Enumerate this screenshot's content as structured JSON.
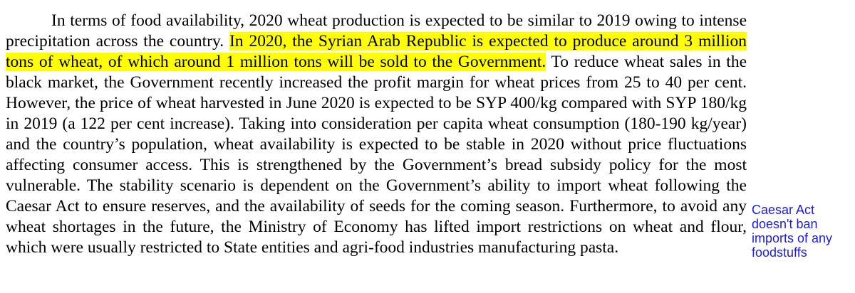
{
  "paragraph": {
    "before_highlight": "In terms of food availability, 2020 wheat production is expected to be similar to 2019 owing to intense precipitation across the country. ",
    "highlight": "In 2020, the Syrian Arab Republic is expected to produce around 3 million tons of wheat, of which around 1 million tons will be sold to the Government.",
    "after_highlight": " To reduce wheat sales in the black market, the Government recently increased the profit margin for wheat prices from 25 to 40 per cent. However, the price of wheat harvested in June 2020 is expected to be SYP 400/kg compared with SYP 180/kg in 2019 (a 122 per cent increase). Taking into consideration per capita wheat consumption (180-190 kg/year) and the country’s population, wheat availability is expected to be stable in 2020 without price fluctuations affecting consumer access. This is strengthened by the Government’s bread subsidy policy for the most vulnerable. The stability scenario is dependent on the Government’s ability to import wheat following the Caesar Act to ensure reserves, and the availability of seeds for the coming season. Furthermore, to avoid any wheat shortages in the future, the Ministry of Economy has lifted import restrictions on wheat and flour, which were usually restricted to State entities and agri-food industries manufacturing pasta."
  },
  "annotation": {
    "text": "Caesar Act doesn't ban imports of any foodstuffs"
  },
  "colors": {
    "highlight": "#ffff00",
    "annotation_text": "#1a1aee"
  }
}
